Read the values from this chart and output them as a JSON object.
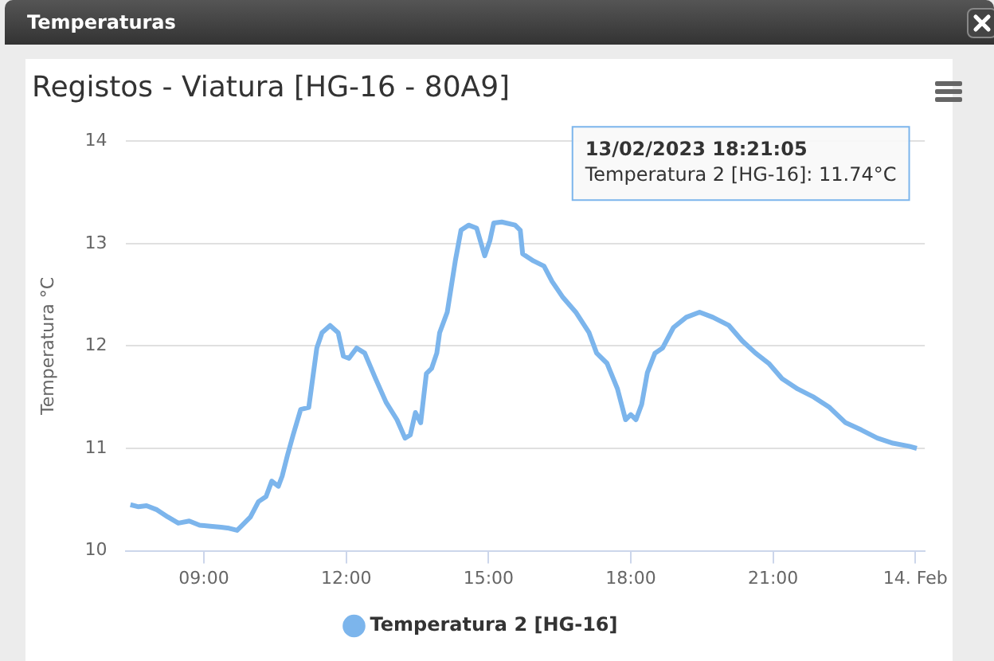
{
  "chart_data": {
    "type": "line",
    "title": "Temperaturas",
    "subtitle": "Registos - Viatura [HG-16 - 80A9]",
    "ylabel": "Temperatura °C",
    "xlim": [
      7.36,
      24.2
    ],
    "xticks": [
      {
        "value": 9,
        "label": "09:00"
      },
      {
        "value": 12,
        "label": "12:00"
      },
      {
        "value": 15,
        "label": "15:00"
      },
      {
        "value": 18,
        "label": "18:00"
      },
      {
        "value": 21,
        "label": "21:00"
      },
      {
        "value": 24,
        "label": "14. Feb"
      }
    ],
    "ylim": [
      10,
      14
    ],
    "yticks": [
      10,
      11,
      12,
      13,
      14
    ],
    "grid": "y",
    "legend": "bottom",
    "marker": "none",
    "line_style": "solid",
    "annotations": [
      "13/02/2023 18:21:05",
      "Temperatura 2 [HG-16]: 11.74°C"
    ],
    "series": [
      {
        "name": "Temperatura 2 [HG-16]",
        "color": "#7cb5ec",
        "x": [
          7.45,
          7.62,
          7.79,
          8.01,
          8.24,
          8.46,
          8.69,
          8.91,
          9.13,
          9.36,
          9.53,
          9.7,
          9.81,
          9.98,
          10.15,
          10.31,
          10.43,
          10.57,
          10.65,
          10.76,
          10.88,
          11.04,
          11.21,
          11.38,
          11.49,
          11.66,
          11.83,
          11.94,
          12.06,
          12.22,
          12.39,
          12.62,
          12.84,
          13.07,
          13.24,
          13.35,
          13.46,
          13.57,
          13.69,
          13.8,
          13.91,
          13.97,
          14.13,
          14.3,
          14.42,
          14.58,
          14.75,
          14.92,
          15.03,
          15.11,
          15.28,
          15.56,
          15.67,
          15.72,
          15.95,
          16.17,
          16.34,
          16.56,
          16.84,
          17.12,
          17.28,
          17.5,
          17.72,
          17.89,
          18.0,
          18.11,
          18.23,
          18.35,
          18.51,
          18.67,
          18.9,
          19.17,
          19.45,
          19.73,
          20.07,
          20.35,
          20.63,
          20.91,
          21.19,
          21.52,
          21.86,
          22.19,
          22.53,
          22.86,
          23.2,
          23.53,
          23.87,
          24.03
        ],
        "values": [
          10.45,
          10.43,
          10.44,
          10.4,
          10.33,
          10.27,
          10.29,
          10.25,
          10.24,
          10.23,
          10.22,
          10.2,
          10.25,
          10.33,
          10.48,
          10.53,
          10.68,
          10.63,
          10.73,
          10.93,
          11.13,
          11.38,
          11.4,
          11.98,
          12.13,
          12.2,
          12.13,
          11.9,
          11.88,
          11.98,
          11.93,
          11.68,
          11.45,
          11.28,
          11.1,
          11.13,
          11.35,
          11.25,
          11.73,
          11.78,
          11.93,
          12.13,
          12.33,
          12.83,
          13.13,
          13.18,
          13.15,
          12.88,
          13.03,
          13.2,
          13.21,
          13.18,
          13.13,
          12.9,
          12.83,
          12.78,
          12.63,
          12.48,
          12.33,
          12.13,
          11.93,
          11.83,
          11.58,
          11.28,
          11.33,
          11.28,
          11.43,
          11.74,
          11.93,
          11.98,
          12.18,
          12.28,
          12.33,
          12.28,
          12.2,
          12.05,
          11.93,
          11.83,
          11.68,
          11.58,
          11.5,
          11.4,
          11.25,
          11.18,
          11.1,
          11.05,
          11.02,
          11.0
        ]
      }
    ]
  }
}
